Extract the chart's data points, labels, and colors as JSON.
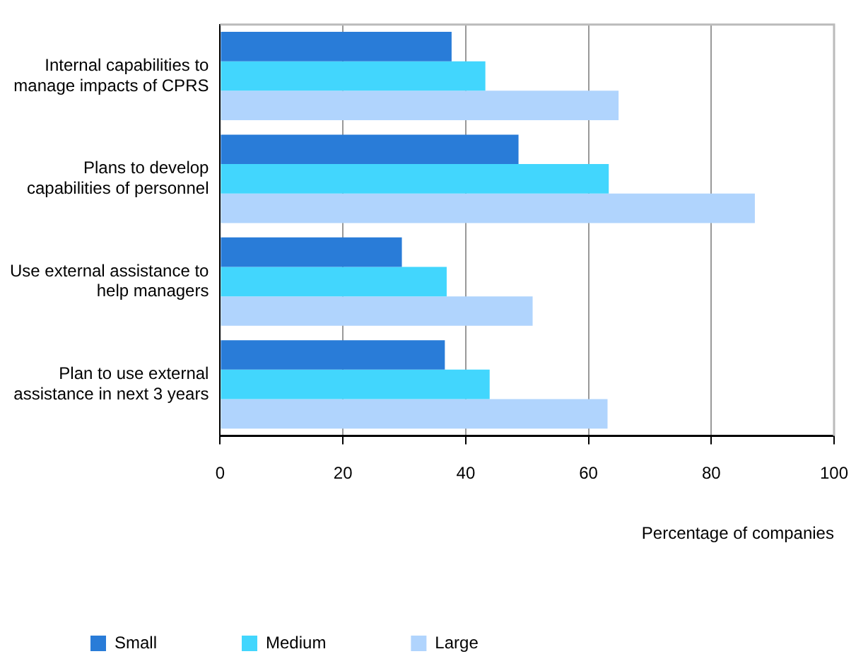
{
  "chart_data": {
    "type": "bar",
    "orientation": "horizontal",
    "xlabel": "Percentage of companies",
    "categories": [
      "Internal capabilities to manage impacts of CPRS",
      "Plans to develop capabilities of personnel",
      "Use external assistance to help managers",
      "Plan to use external assistance in next 3 years"
    ],
    "series": [
      {
        "name": "Small",
        "color": "#297cd8",
        "values": [
          37.7,
          48.6,
          29.6,
          36.6
        ]
      },
      {
        "name": "Medium",
        "color": "#42d6fd",
        "values": [
          43.2,
          63.3,
          36.9,
          43.9
        ]
      },
      {
        "name": "Large",
        "color": "#b0d4fd",
        "values": [
          64.9,
          87.1,
          50.9,
          63.1
        ]
      }
    ],
    "xlim": [
      0,
      100
    ],
    "xticks": [
      0,
      20,
      40,
      60,
      80,
      100
    ],
    "grid": "x",
    "legend": "bottom"
  }
}
